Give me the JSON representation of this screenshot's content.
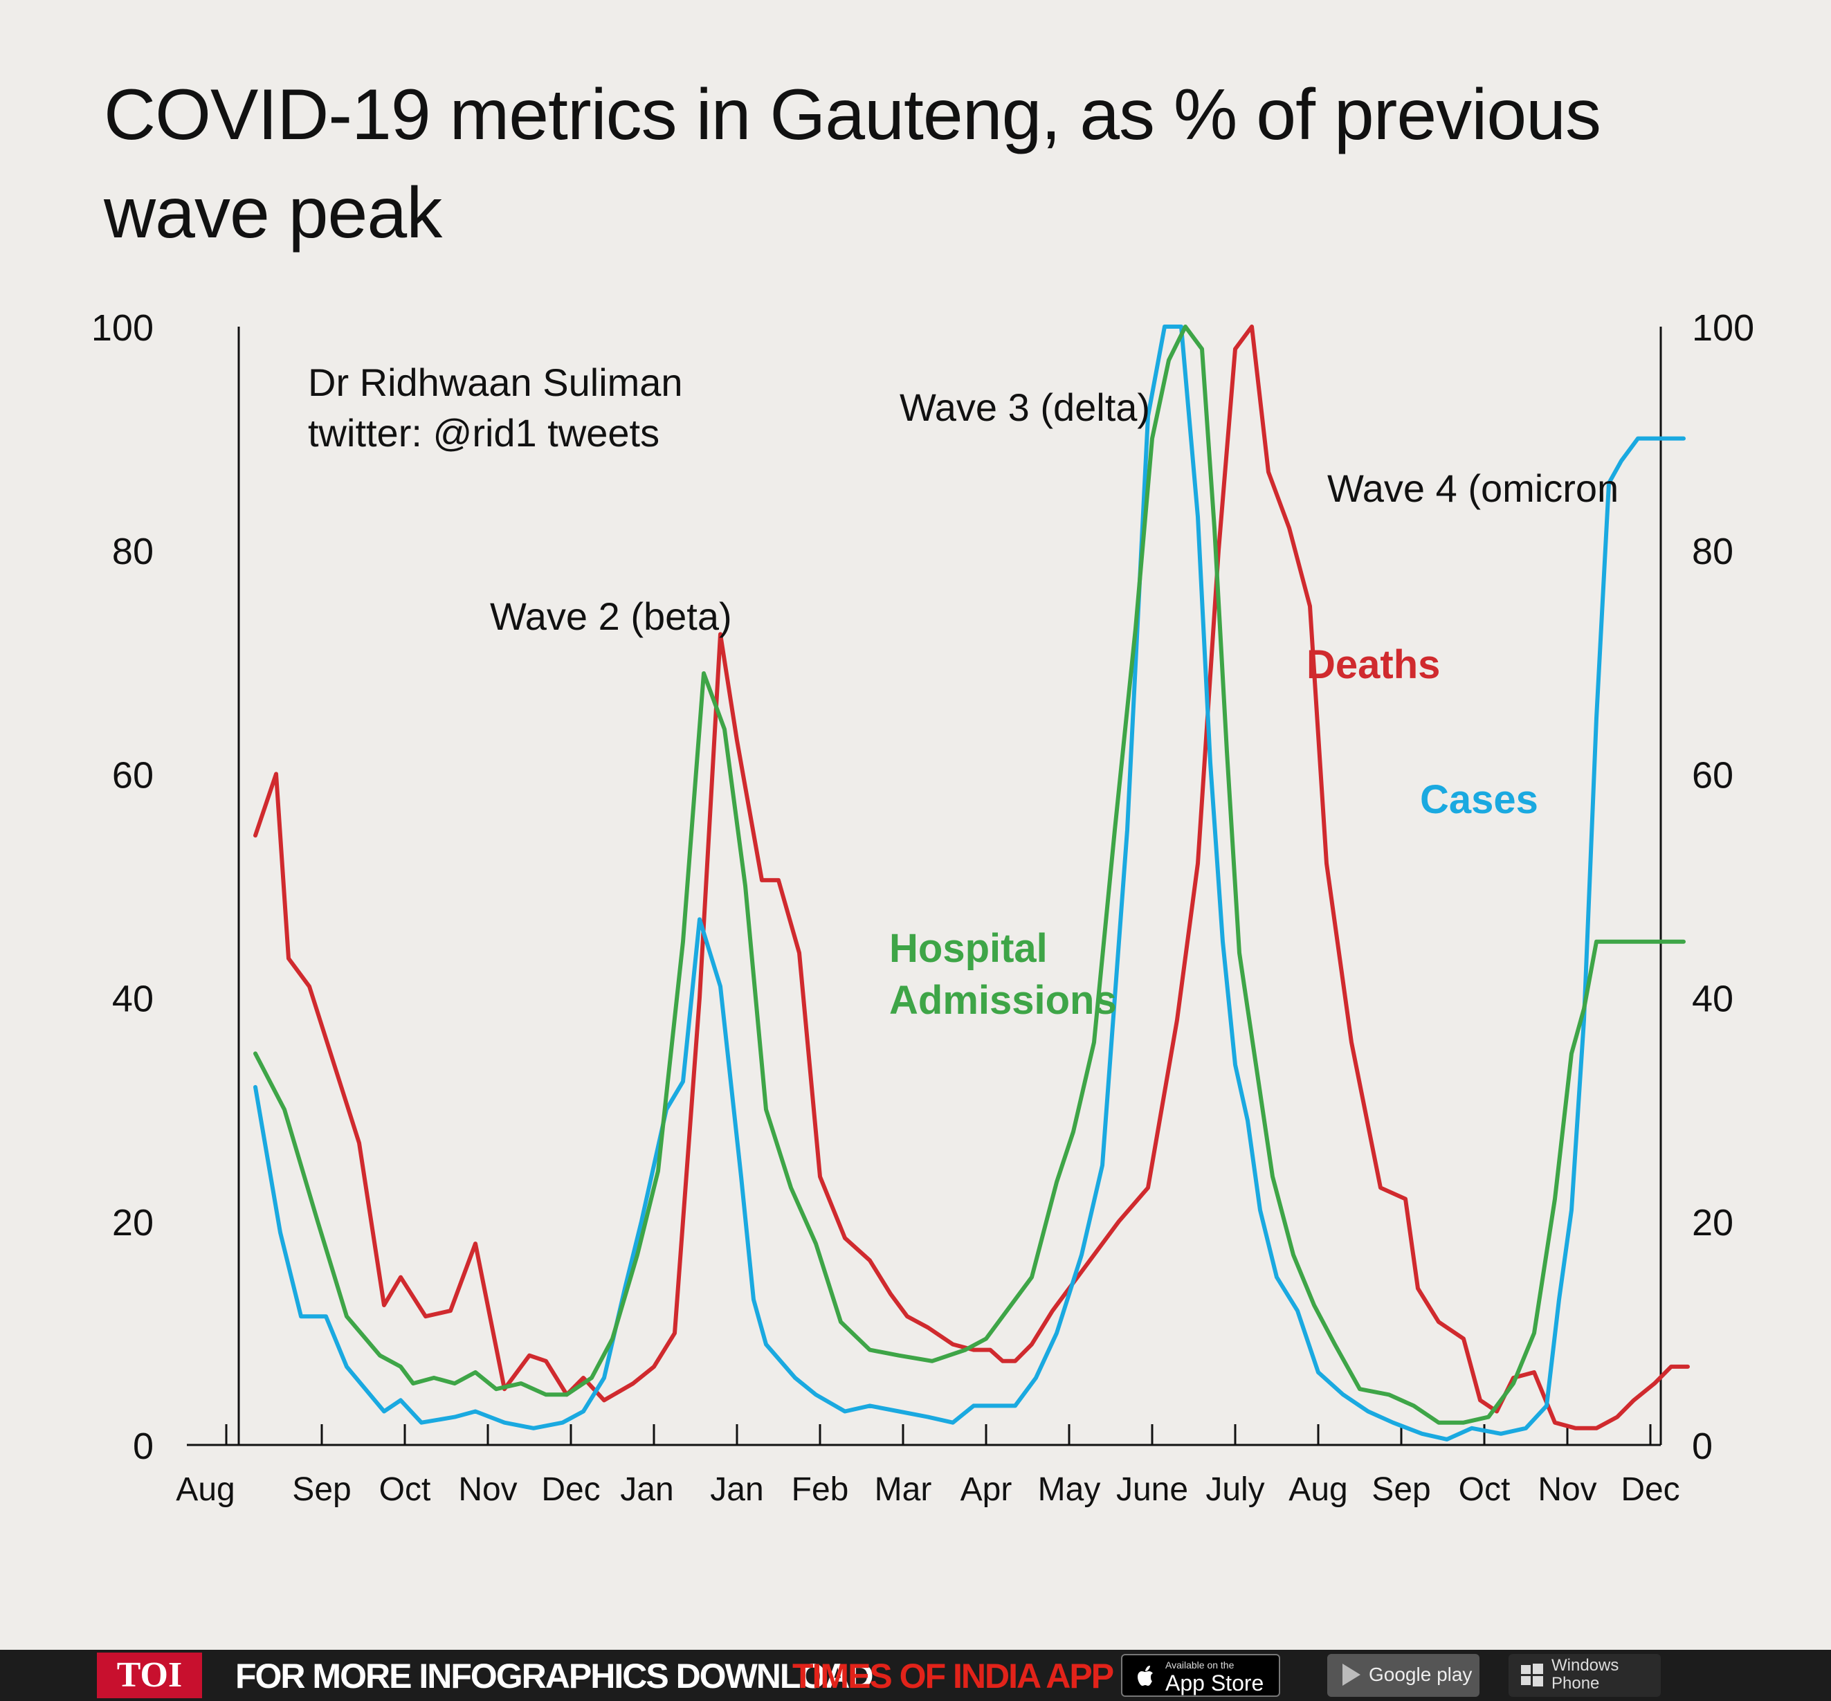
{
  "title": "COVID-19 metrics in Gauteng, as % of previous wave peak",
  "chart_data": {
    "type": "line",
    "title": "COVID-19 metrics in Gauteng, as % of previous wave peak",
    "xlabel": "",
    "ylabel": "",
    "ylim": [
      0,
      100
    ],
    "y_ticks": [
      "0",
      "20",
      "40",
      "60",
      "80",
      "100"
    ],
    "categories": [
      "Aug",
      "Sep",
      "Oct",
      "Nov",
      "Dec",
      "Jan",
      "Jan",
      "Feb",
      "Mar",
      "Apr",
      "May",
      "June",
      "July",
      "Aug",
      "Sep",
      "Oct",
      "Nov",
      "Dec"
    ],
    "grid": false,
    "legend": "inline labels",
    "source": "Dr Ridhwaan Suliman\ntwitter: @rid1 tweets",
    "annotations": [
      "Wave 2 (beta)",
      "Wave 3 (delta)",
      "Wave 4 (omicron"
    ],
    "series": [
      {
        "name": "Deaths",
        "color": "#d02a2e",
        "x": [
          0.2,
          0.45,
          0.6,
          0.85,
          1.15,
          1.45,
          1.75,
          1.95,
          2.25,
          2.55,
          2.85,
          3.2,
          3.5,
          3.7,
          3.95,
          4.15,
          4.4,
          4.75,
          5.0,
          5.25,
          5.55,
          5.8,
          6.0,
          6.3,
          6.5,
          6.75,
          7.0,
          7.3,
          7.6,
          7.85,
          8.05,
          8.3,
          8.6,
          8.85,
          9.05,
          9.2,
          9.35,
          9.55,
          9.8,
          10.2,
          10.6,
          10.95,
          11.3,
          11.55,
          11.8,
          12.0,
          12.2,
          12.4,
          12.65,
          12.9,
          13.1,
          13.4,
          13.75,
          14.05,
          14.2,
          14.45,
          14.75,
          14.95,
          15.15,
          15.35,
          15.6,
          15.85,
          16.1,
          16.35,
          16.6,
          16.8,
          17.05,
          17.25,
          17.45
        ],
        "values": [
          54.5,
          60.0,
          43.5,
          41.0,
          34.0,
          27.0,
          12.5,
          15.0,
          11.5,
          12.0,
          18.0,
          5.0,
          8.0,
          7.5,
          4.5,
          6.0,
          4.0,
          5.5,
          7.0,
          10.0,
          40.0,
          72.5,
          63.0,
          50.5,
          50.5,
          44.0,
          24.0,
          18.5,
          16.5,
          13.5,
          11.5,
          10.5,
          9.0,
          8.5,
          8.5,
          7.5,
          7.5,
          9.0,
          12.0,
          16.0,
          20.0,
          23.0,
          38.0,
          52.0,
          80.0,
          98.0,
          100.0,
          87.0,
          82.0,
          75.0,
          52.0,
          36.0,
          23.0,
          22.0,
          14.0,
          11.0,
          9.5,
          4.0,
          3.0,
          6.0,
          6.5,
          2.0,
          1.5,
          1.5,
          2.5,
          4.0,
          5.5,
          7.0,
          7.0
        ]
      },
      {
        "name": "Cases",
        "color": "#1aa9e0",
        "x": [
          0.2,
          0.5,
          0.75,
          1.05,
          1.3,
          1.75,
          1.95,
          2.2,
          2.6,
          2.85,
          3.2,
          3.55,
          3.9,
          4.15,
          4.4,
          4.65,
          4.85,
          5.15,
          5.35,
          5.55,
          5.8,
          6.05,
          6.2,
          6.35,
          6.7,
          6.95,
          7.3,
          7.6,
          7.95,
          8.3,
          8.6,
          8.85,
          9.1,
          9.35,
          9.6,
          9.85,
          10.15,
          10.4,
          10.7,
          10.95,
          11.15,
          11.35,
          11.55,
          11.7,
          11.85,
          12.0,
          12.15,
          12.3,
          12.5,
          12.75,
          13.0,
          13.3,
          13.6,
          13.9,
          14.25,
          14.55,
          14.85,
          15.2,
          15.5,
          15.75,
          15.9,
          16.05,
          16.2,
          16.35,
          16.5,
          16.65,
          16.85,
          17.0,
          17.2,
          17.4
        ],
        "values": [
          32.0,
          19.0,
          11.5,
          11.5,
          7.0,
          3.0,
          4.0,
          2.0,
          2.5,
          3.0,
          2.0,
          1.5,
          2.0,
          3.0,
          6.0,
          14.0,
          20.0,
          30.0,
          32.5,
          47.0,
          41.0,
          24.0,
          13.0,
          9.0,
          6.0,
          4.5,
          3.0,
          3.5,
          3.0,
          2.5,
          2.0,
          3.5,
          3.5,
          3.5,
          6.0,
          10.0,
          17.0,
          25.0,
          55.0,
          92.0,
          100.0,
          100.0,
          83.0,
          61.0,
          45.0,
          34.0,
          29.0,
          21.0,
          15.0,
          12.0,
          6.5,
          4.5,
          3.0,
          2.0,
          1.0,
          0.5,
          1.5,
          1.0,
          1.5,
          3.5,
          13.0,
          21.0,
          38.0,
          65.0,
          86.0,
          88.0,
          90.0,
          90.0,
          90.0,
          90.0
        ],
        "clip_note": ""
      },
      {
        "name": "Hospital Admissions",
        "color": "#3ea547",
        "x": [
          0.2,
          0.55,
          0.95,
          1.3,
          1.7,
          1.95,
          2.1,
          2.35,
          2.6,
          2.85,
          3.1,
          3.4,
          3.7,
          3.95,
          4.25,
          4.5,
          4.8,
          5.05,
          5.35,
          5.6,
          5.85,
          6.1,
          6.35,
          6.65,
          6.95,
          7.25,
          7.6,
          7.95,
          8.35,
          8.75,
          9.0,
          9.25,
          9.55,
          9.85,
          10.05,
          10.3,
          10.55,
          10.8,
          11.0,
          11.2,
          11.4,
          11.6,
          11.75,
          11.9,
          12.05,
          12.25,
          12.45,
          12.7,
          12.95,
          13.2,
          13.5,
          13.85,
          14.15,
          14.45,
          14.75,
          15.05,
          15.35,
          15.6,
          15.85,
          16.05,
          16.2,
          16.35,
          16.5,
          16.65,
          16.8,
          17.0,
          17.2,
          17.4
        ],
        "values": [
          35.0,
          30.0,
          20.0,
          11.5,
          8.0,
          7.0,
          5.5,
          6.0,
          5.5,
          6.5,
          5.0,
          5.5,
          4.5,
          4.5,
          6.0,
          9.5,
          17.0,
          24.5,
          45.0,
          69.0,
          64.0,
          50.0,
          30.0,
          23.0,
          18.0,
          11.0,
          8.5,
          8.0,
          7.5,
          8.5,
          9.5,
          12.0,
          15.0,
          23.5,
          28.0,
          36.0,
          55.0,
          73.0,
          90.0,
          97.0,
          100.0,
          98.0,
          82.0,
          62.0,
          44.0,
          34.0,
          24.0,
          17.0,
          12.5,
          9.0,
          5.0,
          4.5,
          3.5,
          2.0,
          2.0,
          2.5,
          5.5,
          10.0,
          22.0,
          35.0,
          39.0,
          45.0,
          45.0,
          45.0,
          45.0,
          45.0,
          45.0,
          45.0
        ]
      }
    ]
  },
  "footer": {
    "logo": "TOI",
    "promo_white": "FOR MORE  INFOGRAPHICS DOWNLOAD",
    "promo_red": "TIMES OF INDIA  APP",
    "apple_small": "Available on the",
    "apple_big": "App Store",
    "google": "Google play",
    "windows": "Windows Phone"
  }
}
